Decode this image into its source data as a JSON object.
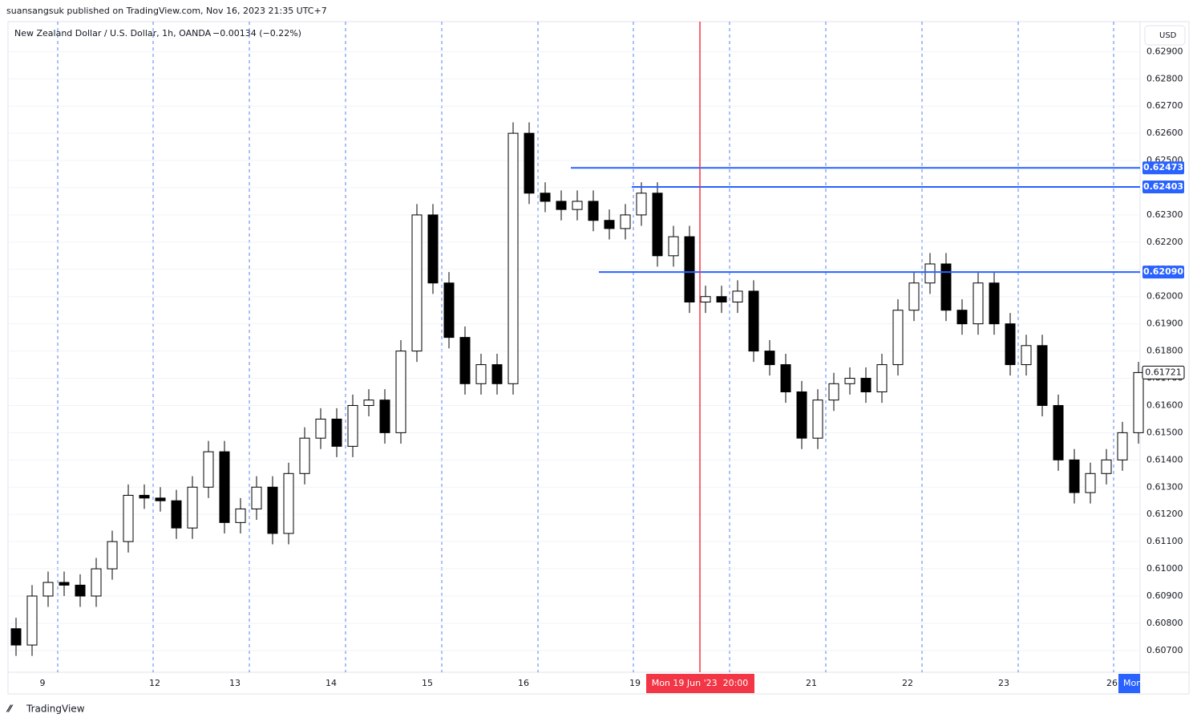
{
  "credit": "suansangsuk published on TradingView.com, Nov 16, 2023 21:35 UTC+7",
  "brand": "TradingView",
  "chart_data": {
    "type": "candlestick",
    "title": "New Zealand Dollar / U.S. Dollar, 1h, OANDA",
    "change": "−0.00134 (−0.22%)",
    "currency": "USD",
    "ylim": [
      0.6062,
      0.6301
    ],
    "yticks": [
      {
        "value": 0.607,
        "label": "0.60700"
      },
      {
        "value": 0.608,
        "label": "0.60800"
      },
      {
        "value": 0.609,
        "label": "0.60900"
      },
      {
        "value": 0.61,
        "label": "0.61000"
      },
      {
        "value": 0.611,
        "label": "0.61100"
      },
      {
        "value": 0.612,
        "label": "0.61200"
      },
      {
        "value": 0.613,
        "label": "0.61300"
      },
      {
        "value": 0.614,
        "label": "0.61400"
      },
      {
        "value": 0.615,
        "label": "0.61500"
      },
      {
        "value": 0.616,
        "label": "0.61600"
      },
      {
        "value": 0.617,
        "label": "0.61700"
      },
      {
        "value": 0.618,
        "label": "0.61800"
      },
      {
        "value": 0.619,
        "label": "0.61900"
      },
      {
        "value": 0.62,
        "label": "0.62000"
      },
      {
        "value": 0.621,
        "label": "0.62100"
      },
      {
        "value": 0.622,
        "label": "0.62200"
      },
      {
        "value": 0.623,
        "label": "0.62300"
      },
      {
        "value": 0.624,
        "label": "0.62400"
      },
      {
        "value": 0.625,
        "label": "0.62500"
      },
      {
        "value": 0.626,
        "label": "0.62600"
      },
      {
        "value": 0.627,
        "label": "0.62700"
      },
      {
        "value": 0.628,
        "label": "0.62800"
      },
      {
        "value": 0.629,
        "label": "0.62900"
      }
    ],
    "x_labels": [
      "9",
      "12",
      "13",
      "14",
      "15",
      "16",
      "19",
      "21",
      "22",
      "23",
      "26"
    ],
    "cursor_label": "Mon 19 Jun '23  20:00",
    "end_label": "Mon",
    "open": [
      0.6078,
      0.6072,
      0.609,
      0.6095,
      0.6094,
      0.609,
      0.61,
      0.611,
      0.6127,
      0.6126,
      0.6125,
      0.6115,
      0.613,
      0.6143,
      0.6117,
      0.6122,
      0.613,
      0.6113,
      0.6135,
      0.6148,
      0.6155,
      0.6145,
      0.616,
      0.6162,
      0.615,
      0.618,
      0.623,
      0.6205,
      0.6185,
      0.6168,
      0.6175,
      0.6168,
      0.626,
      0.6238,
      0.6235,
      0.6232,
      0.6235,
      0.6228,
      0.6225,
      0.623,
      0.6238,
      0.6215,
      0.6222,
      0.6198,
      0.62,
      0.6198,
      0.6202,
      0.618,
      0.6175,
      0.6165,
      0.6148,
      0.6162,
      0.6168,
      0.617,
      0.6165,
      0.6175,
      0.6195,
      0.6205,
      0.6212,
      0.6195,
      0.619,
      0.6205,
      0.619,
      0.6175,
      0.6182,
      0.616,
      0.614,
      0.6128,
      0.6135,
      0.614,
      0.615
    ],
    "high": [
      0.6082,
      0.6094,
      0.6099,
      0.6099,
      0.6098,
      0.6104,
      0.6114,
      0.6131,
      0.6131,
      0.613,
      0.6129,
      0.6134,
      0.6147,
      0.6147,
      0.6126,
      0.6134,
      0.6134,
      0.6139,
      0.6152,
      0.6159,
      0.6159,
      0.6164,
      0.6166,
      0.6166,
      0.6184,
      0.6234,
      0.6234,
      0.6209,
      0.6189,
      0.6179,
      0.6179,
      0.6264,
      0.6264,
      0.6242,
      0.6239,
      0.6239,
      0.6239,
      0.6232,
      0.6234,
      0.6242,
      0.6242,
      0.6226,
      0.6226,
      0.6204,
      0.6204,
      0.6206,
      0.6206,
      0.6184,
      0.6179,
      0.6169,
      0.6166,
      0.6172,
      0.6174,
      0.6174,
      0.6179,
      0.6199,
      0.6209,
      0.6216,
      0.6216,
      0.6199,
      0.6209,
      0.6209,
      0.6194,
      0.6186,
      0.6186,
      0.6164,
      0.6144,
      0.6139,
      0.6144,
      0.6154,
      0.6176
    ],
    "low": [
      0.6068,
      0.6068,
      0.6086,
      0.609,
      0.6086,
      0.6086,
      0.6096,
      0.6106,
      0.6122,
      0.6121,
      0.6111,
      0.6111,
      0.6126,
      0.6113,
      0.6113,
      0.6118,
      0.6109,
      0.6109,
      0.6131,
      0.6144,
      0.6141,
      0.6141,
      0.6156,
      0.6146,
      0.6146,
      0.6176,
      0.6201,
      0.6181,
      0.6164,
      0.6164,
      0.6164,
      0.6164,
      0.6234,
      0.6231,
      0.6228,
      0.6228,
      0.6224,
      0.6221,
      0.6221,
      0.6226,
      0.6211,
      0.6211,
      0.6194,
      0.6194,
      0.6194,
      0.6194,
      0.6176,
      0.6171,
      0.6161,
      0.6144,
      0.6144,
      0.6158,
      0.6164,
      0.6161,
      0.6161,
      0.6171,
      0.6191,
      0.6201,
      0.6191,
      0.6186,
      0.6186,
      0.6186,
      0.6171,
      0.6171,
      0.6156,
      0.6136,
      0.6124,
      0.6124,
      0.6131,
      0.6136,
      0.6146
    ],
    "close": [
      0.6072,
      0.609,
      0.6095,
      0.6094,
      0.609,
      0.61,
      0.611,
      0.6127,
      0.6126,
      0.6125,
      0.6115,
      0.613,
      0.6143,
      0.6117,
      0.6122,
      0.613,
      0.6113,
      0.6135,
      0.6148,
      0.6155,
      0.6145,
      0.616,
      0.6162,
      0.615,
      0.618,
      0.623,
      0.6205,
      0.6185,
      0.6168,
      0.6175,
      0.6168,
      0.626,
      0.6238,
      0.6235,
      0.6232,
      0.6235,
      0.6228,
      0.6225,
      0.623,
      0.6238,
      0.6215,
      0.6222,
      0.6198,
      0.62,
      0.6198,
      0.6202,
      0.618,
      0.6175,
      0.6165,
      0.6148,
      0.6162,
      0.6168,
      0.617,
      0.6165,
      0.6175,
      0.6195,
      0.6205,
      0.6212,
      0.6195,
      0.619,
      0.6205,
      0.619,
      0.6175,
      0.6182,
      0.616,
      0.614,
      0.6128,
      0.6135,
      0.614,
      0.615,
      0.61721
    ],
    "last_label": "0.61721",
    "levels": [
      0.62473,
      0.62403,
      0.6209
    ],
    "level_labels": [
      "0.62473",
      "0.62403",
      "0.62090"
    ],
    "level_color": "#2962ff",
    "cursor_color": "#f23645"
  }
}
